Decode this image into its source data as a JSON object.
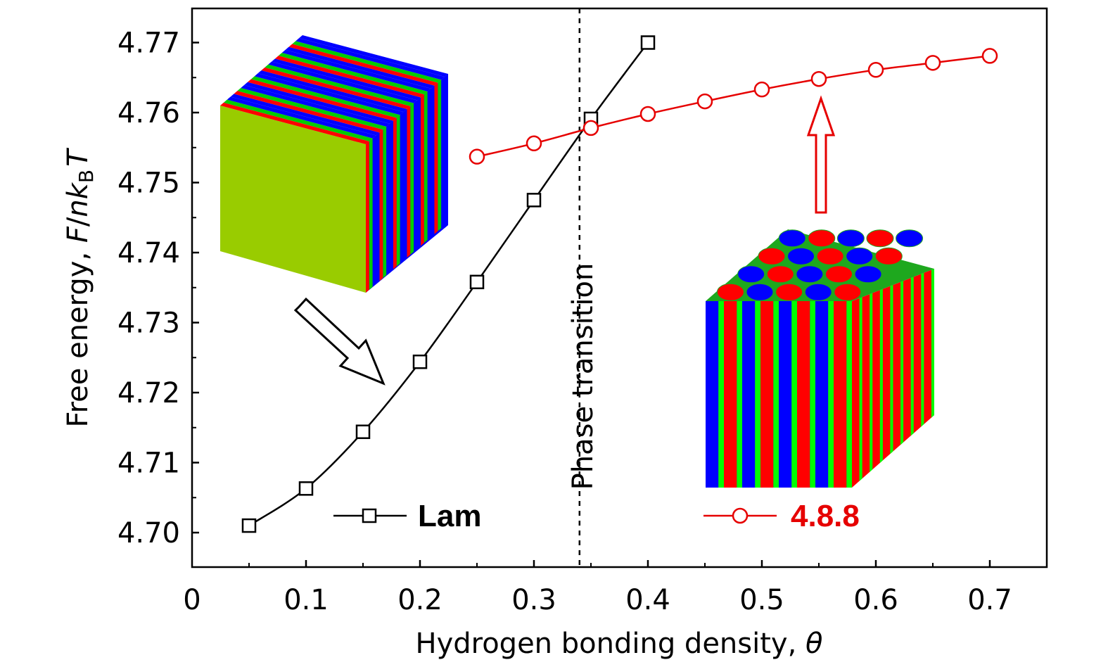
{
  "chart_data": {
    "type": "line",
    "xlabel": "Hydrogen bonding density, ",
    "xlabel_symbol": "θ",
    "ylabel_prefix": "Free energy, ",
    "ylabel_symbol_a": "F",
    "ylabel_sep": "/",
    "ylabel_symbol_b": "nk",
    "ylabel_sub": "B",
    "ylabel_symbol_c": "T",
    "xlim": [
      0,
      0.75
    ],
    "ylim": [
      4.695,
      4.775
    ],
    "x_ticks": [
      {
        "value": 0,
        "label": "0"
      },
      {
        "value": 0.1,
        "label": "0.1"
      },
      {
        "value": 0.2,
        "label": "0.2"
      },
      {
        "value": 0.3,
        "label": "0.3"
      },
      {
        "value": 0.4,
        "label": "0.4"
      },
      {
        "value": 0.5,
        "label": "0.5"
      },
      {
        "value": 0.6,
        "label": "0.6"
      },
      {
        "value": 0.7,
        "label": "0.7"
      }
    ],
    "y_ticks": [
      {
        "value": 4.7,
        "label": "4.70"
      },
      {
        "value": 4.71,
        "label": "4.71"
      },
      {
        "value": 4.72,
        "label": "4.72"
      },
      {
        "value": 4.73,
        "label": "4.73"
      },
      {
        "value": 4.74,
        "label": "4.74"
      },
      {
        "value": 4.75,
        "label": "4.75"
      },
      {
        "value": 4.76,
        "label": "4.76"
      },
      {
        "value": 4.77,
        "label": "4.77"
      }
    ],
    "grid": false,
    "series": [
      {
        "name": "Lam",
        "color": "#000000",
        "marker": "square",
        "x": [
          0.05,
          0.1,
          0.15,
          0.2,
          0.25,
          0.3,
          0.35,
          0.4
        ],
        "y": [
          4.701,
          4.7063,
          4.7144,
          4.7244,
          4.7358,
          4.7475,
          4.7591,
          4.77
        ]
      },
      {
        "name": "4.8.8",
        "color": "#e60000",
        "marker": "circle",
        "x": [
          0.25,
          0.3,
          0.35,
          0.4,
          0.45,
          0.5,
          0.55,
          0.6,
          0.65,
          0.7
        ],
        "y": [
          4.7537,
          4.7556,
          4.7578,
          4.7598,
          4.7616,
          4.7633,
          4.7648,
          4.7661,
          4.7671,
          4.7681
        ]
      }
    ],
    "annotations": [
      {
        "text": "Phase transition",
        "x": 0.34,
        "kind": "vertical-dashed-line"
      }
    ],
    "insets": [
      {
        "name": "lamellar-structure",
        "colors": [
          "#99cc00",
          "#ff0000",
          "#00cc00",
          "#0000ff"
        ]
      },
      {
        "name": "4.8.8-structure",
        "colors": [
          "#0000ff",
          "#ff0000",
          "#00ff00"
        ]
      }
    ]
  }
}
